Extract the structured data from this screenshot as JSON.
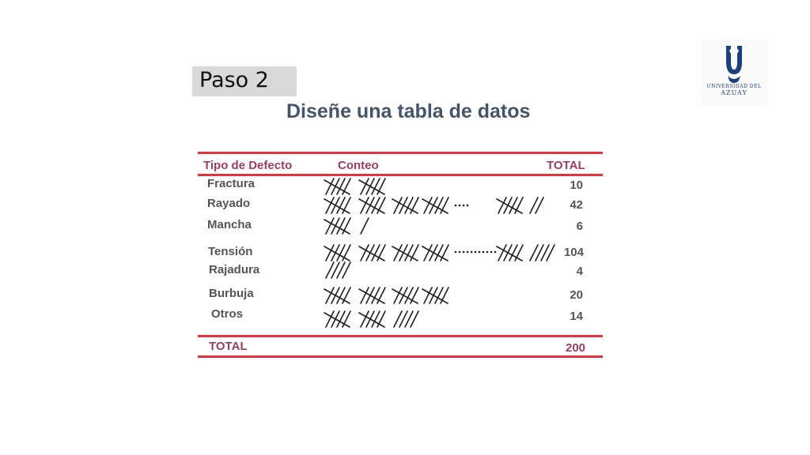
{
  "step": {
    "label": "Paso 2"
  },
  "title": "Diseñe una tabla de datos",
  "logo": {
    "line1": "UNIVERSIDAD DEL",
    "line2": "AZUAY"
  },
  "table": {
    "headers": {
      "type": "Tipo de Defecto",
      "count": "Conteo",
      "total": "TOTAL"
    },
    "rows": [
      {
        "label": "Fractura",
        "tally": "10 marks",
        "total": "10"
      },
      {
        "label": "Rayado",
        "tally": "20 marks .... 7 marks",
        "total": "42"
      },
      {
        "label": "Mancha",
        "tally": "6 marks",
        "total": "6"
      },
      {
        "label": "Tensión",
        "tally": "20 marks ............ 9 marks",
        "total": "104"
      },
      {
        "label": "Rajadura",
        "tally": "4 marks",
        "total": "4"
      },
      {
        "label": "Burbuja",
        "tally": "20 marks",
        "total": "20"
      },
      {
        "label": "Otros",
        "tally": "14 marks",
        "total": "14"
      }
    ],
    "footer": {
      "label": "TOTAL",
      "value": "200"
    }
  },
  "colors": {
    "rule": "#e0353f",
    "header_text": "#9b3d63",
    "title": "#44546a",
    "tally": "#1f1f1f",
    "logo": "#1d3f7a"
  }
}
